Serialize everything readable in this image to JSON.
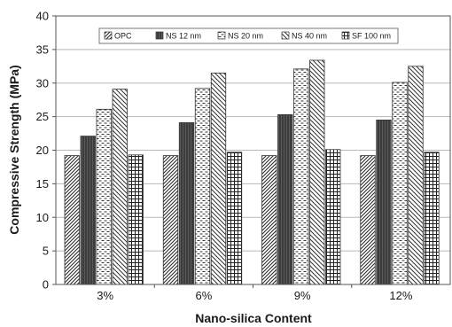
{
  "chart_data": {
    "type": "bar",
    "xlabel": "Nano-silica Content",
    "ylabel": "Compressive Strength (MPa)",
    "ylim": [
      0,
      40
    ],
    "yticks": [
      0,
      5,
      10,
      15,
      20,
      25,
      30,
      35,
      40
    ],
    "grid": true,
    "legend_position": "top",
    "categories": [
      "3%",
      "6%",
      "9%",
      "12%"
    ],
    "series": [
      {
        "name": "OPC",
        "pattern": "diag-right",
        "values": [
          19.2,
          19.2,
          19.2,
          19.2
        ]
      },
      {
        "name": "NS 12 nm",
        "pattern": "dark-vertical",
        "values": [
          22.1,
          24.1,
          25.3,
          24.5
        ]
      },
      {
        "name": "NS 20 nm",
        "pattern": "dashes",
        "values": [
          26.1,
          29.2,
          32.1,
          30.1
        ]
      },
      {
        "name": "NS 40 nm",
        "pattern": "diag-left",
        "values": [
          29.1,
          31.5,
          33.4,
          32.5
        ]
      },
      {
        "name": "SF 100 nm",
        "pattern": "grid",
        "values": [
          19.3,
          19.7,
          20.1,
          19.7
        ]
      }
    ]
  }
}
